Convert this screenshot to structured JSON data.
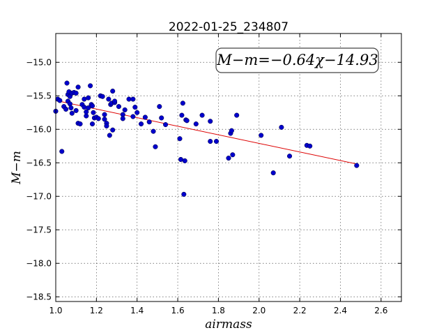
{
  "chart_data": {
    "type": "scatter",
    "title": "2022-01-25_234807",
    "xlabel": "airmass",
    "ylabel": "M−m",
    "xlim": [
      1.0,
      2.7
    ],
    "ylim": [
      -18.57,
      -14.57
    ],
    "y_inverted": true,
    "grid": true,
    "x_ticks": [
      "1.0",
      "1.2",
      "1.4",
      "1.6",
      "1.8",
      "2.0",
      "2.2",
      "2.4",
      "2.6"
    ],
    "x_tick_values": [
      1.0,
      1.2,
      1.4,
      1.6,
      1.8,
      2.0,
      2.2,
      2.4,
      2.6
    ],
    "y_ticks": [
      "−15.0",
      "−15.5",
      "−16.0",
      "−16.5",
      "−17.0",
      "−17.5",
      "−18.0",
      "−18.5"
    ],
    "y_tick_values": [
      -15.0,
      -15.5,
      -16.0,
      -16.5,
      -17.0,
      -17.5,
      -18.0,
      -18.5
    ],
    "annotation": "M−m=−0.64χ−14.93",
    "annotation_position": "top-right",
    "point_color": "#0000cc",
    "fit_color": "#dd0000",
    "fit": {
      "slope": -0.64,
      "intercept": -14.93,
      "x_range": [
        1.0,
        2.48
      ]
    },
    "points": [
      [
        1.0,
        -15.73
      ],
      [
        1.01,
        -15.55
      ],
      [
        1.02,
        -15.57
      ],
      [
        1.03,
        -16.33
      ],
      [
        1.04,
        -15.66
      ],
      [
        1.05,
        -15.7
      ],
      [
        1.055,
        -15.31
      ],
      [
        1.06,
        -15.48
      ],
      [
        1.06,
        -15.58
      ],
      [
        1.065,
        -15.44
      ],
      [
        1.07,
        -15.62
      ],
      [
        1.07,
        -15.51
      ],
      [
        1.075,
        -15.68
      ],
      [
        1.08,
        -15.76
      ],
      [
        1.08,
        -15.46
      ],
      [
        1.09,
        -15.45
      ],
      [
        1.1,
        -15.72
      ],
      [
        1.1,
        -15.46
      ],
      [
        1.11,
        -15.91
      ],
      [
        1.11,
        -15.37
      ],
      [
        1.12,
        -15.92
      ],
      [
        1.13,
        -15.63
      ],
      [
        1.14,
        -15.55
      ],
      [
        1.14,
        -15.67
      ],
      [
        1.15,
        -15.8
      ],
      [
        1.15,
        -15.74
      ],
      [
        1.16,
        -15.53
      ],
      [
        1.16,
        -15.68
      ],
      [
        1.17,
        -15.35
      ],
      [
        1.175,
        -15.63
      ],
      [
        1.18,
        -15.92
      ],
      [
        1.18,
        -15.65
      ],
      [
        1.185,
        -15.75
      ],
      [
        1.19,
        -15.83
      ],
      [
        1.2,
        -15.82
      ],
      [
        1.21,
        -15.84
      ],
      [
        1.22,
        -15.5
      ],
      [
        1.23,
        -15.51
      ],
      [
        1.24,
        -15.78
      ],
      [
        1.24,
        -15.85
      ],
      [
        1.25,
        -15.91
      ],
      [
        1.25,
        -15.95
      ],
      [
        1.26,
        -15.55
      ],
      [
        1.265,
        -16.09
      ],
      [
        1.27,
        -15.63
      ],
      [
        1.275,
        -15.61
      ],
      [
        1.28,
        -15.43
      ],
      [
        1.28,
        -16.01
      ],
      [
        1.29,
        -15.6
      ],
      [
        1.29,
        -15.58
      ],
      [
        1.31,
        -15.66
      ],
      [
        1.33,
        -15.78
      ],
      [
        1.33,
        -15.84
      ],
      [
        1.34,
        -15.71
      ],
      [
        1.36,
        -15.55
      ],
      [
        1.38,
        -15.81
      ],
      [
        1.38,
        -15.55
      ],
      [
        1.39,
        -15.67
      ],
      [
        1.4,
        -15.75
      ],
      [
        1.42,
        -15.92
      ],
      [
        1.44,
        -15.82
      ],
      [
        1.46,
        -15.89
      ],
      [
        1.48,
        -16.03
      ],
      [
        1.49,
        -16.26
      ],
      [
        1.51,
        -15.66
      ],
      [
        1.52,
        -15.83
      ],
      [
        1.54,
        -15.93
      ],
      [
        1.61,
        -16.14
      ],
      [
        1.615,
        -16.45
      ],
      [
        1.62,
        -15.79
      ],
      [
        1.625,
        -15.61
      ],
      [
        1.63,
        -16.97
      ],
      [
        1.635,
        -16.47
      ],
      [
        1.64,
        -15.86
      ],
      [
        1.645,
        -15.87
      ],
      [
        1.69,
        -15.92
      ],
      [
        1.72,
        -15.79
      ],
      [
        1.76,
        -15.88
      ],
      [
        1.76,
        -16.18
      ],
      [
        1.79,
        -16.18
      ],
      [
        1.85,
        -16.43
      ],
      [
        1.86,
        -16.06
      ],
      [
        1.865,
        -16.02
      ],
      [
        1.87,
        -16.38
      ],
      [
        1.89,
        -15.79
      ],
      [
        2.01,
        -16.09
      ],
      [
        2.07,
        -16.65
      ],
      [
        2.11,
        -15.97
      ],
      [
        2.15,
        -16.4
      ],
      [
        2.235,
        -16.24
      ],
      [
        2.25,
        -16.25
      ],
      [
        2.48,
        -16.54
      ]
    ]
  }
}
